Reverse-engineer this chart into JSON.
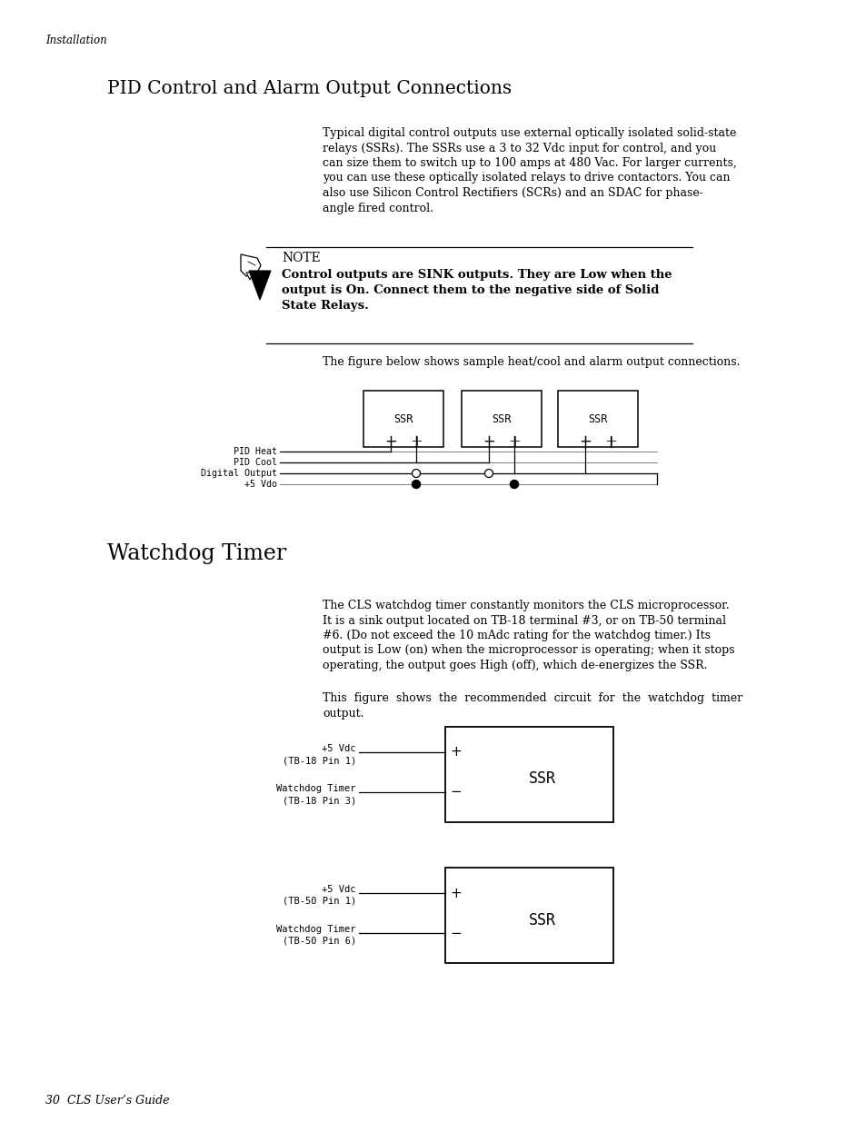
{
  "page_bg": "#ffffff",
  "header_italic": "Installation",
  "title1": "PID Control and Alarm Output Connections",
  "para1_lines": [
    "Typical digital control outputs use external optically isolated solid-state",
    "relays (SSRs). The SSRs use a 3 to 32 Vdc input for control, and you",
    "can size them to switch up to 100 amps at 480 Vac. For larger currents,",
    "you can use these optically isolated relays to drive contactors. You can",
    "also use Silicon Control Rectifiers (SCRs) and an SDAC for phase-",
    "angle fired control."
  ],
  "note_label": "NOTE",
  "note_bold_lines": [
    "Control outputs are SINK outputs. They are Low when the",
    "output is On. Connect them to the negative side of Solid",
    "State Relays."
  ],
  "fig1_caption": "The figure below shows sample heat/cool and alarm output connections.",
  "title2": "Watchdog Timer",
  "para2_lines": [
    "The CLS watchdog timer constantly monitors the CLS microprocessor.",
    "It is a sink output located on TB-18 terminal #3, or on TB-50 terminal",
    "#6. (Do not exceed the 10 mAdc rating for the watchdog timer.) Its",
    "output is Low (on) when the microprocessor is operating; when it stops",
    "operating, the output goes High (off), which de-energizes the SSR."
  ],
  "para3_lines": [
    "This  figure  shows  the  recommended  circuit  for  the  watchdog  timer",
    "output."
  ],
  "fig2_label1a": "+5 Vdc",
  "fig2_label1b": "(TB-18 Pin 1)",
  "fig2_label2a": "Watchdog Timer",
  "fig2_label2b": "(TB-18 Pin 3)",
  "fig3_label1a": "+5 Vdc",
  "fig3_label1b": "(TB-50 Pin 1)",
  "fig3_label2a": "Watchdog Timer",
  "fig3_label2b": "(TB-50 Pin 6)",
  "footer": "30  CLS User’s Guide"
}
